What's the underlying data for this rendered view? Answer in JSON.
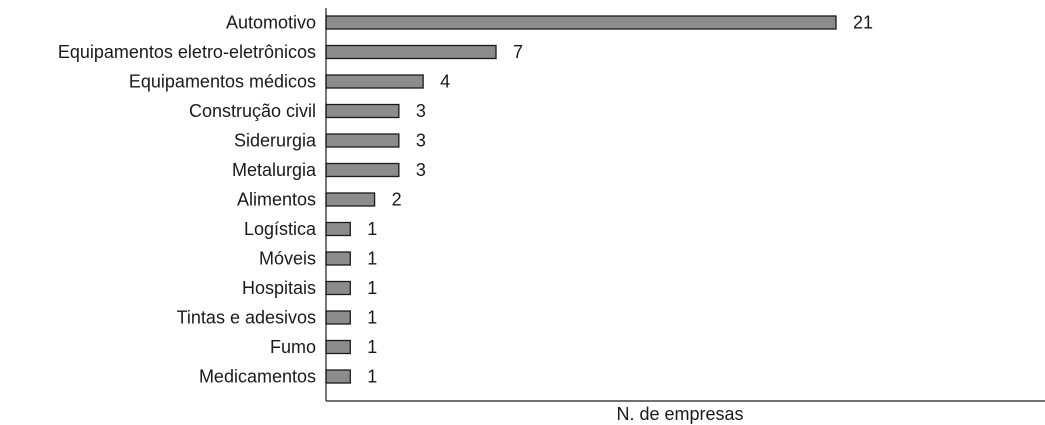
{
  "chart_data": {
    "type": "bar",
    "orientation": "horizontal",
    "categories": [
      "Automotivo",
      "Equipamentos eletro-eletrônicos",
      "Equipamentos médicos",
      "Construção civil",
      "Siderurgia",
      "Metalurgia",
      "Alimentos",
      "Logística",
      "Móveis",
      "Hospitais",
      "Tintas e adesivos",
      "Fumo",
      "Medicamentos"
    ],
    "values": [
      21,
      7,
      4,
      3,
      3,
      3,
      2,
      1,
      1,
      1,
      1,
      1,
      1
    ],
    "value_labels": [
      "21",
      "7",
      "4",
      "3",
      "3",
      "3",
      "2",
      "1",
      "1",
      "1",
      "1",
      "1",
      "1"
    ],
    "xlabel": "N. de empresas",
    "ylabel": "",
    "title": "",
    "xlim": [
      0,
      29
    ],
    "grid": false,
    "legend": "none",
    "colors": {
      "bar_fill": "#8c8c8c",
      "bar_stroke": "#1a1a1a",
      "axis": "#1a1a1a",
      "text": "#1a1a1a"
    }
  }
}
